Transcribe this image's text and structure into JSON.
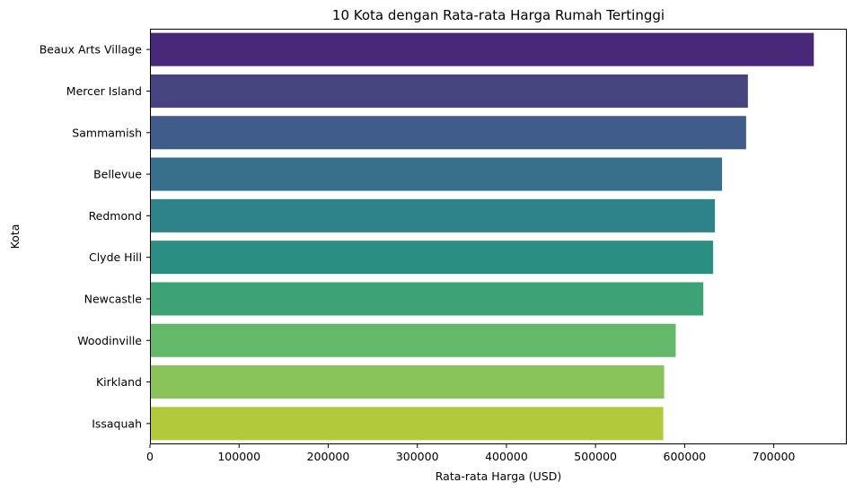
{
  "chart_data": {
    "type": "bar",
    "orientation": "horizontal",
    "title": "10 Kota dengan Rata-rata Harga Rumah Tertinggi",
    "xlabel": "Rata-rata Harga (USD)",
    "ylabel": "Kota",
    "categories": [
      "Beaux Arts Village",
      "Mercer Island",
      "Sammamish",
      "Bellevue",
      "Redmond",
      "Clyde Hill",
      "Newcastle",
      "Woodinville",
      "Kirkland",
      "Issaquah"
    ],
    "values": [
      745000,
      671000,
      669000,
      642000,
      634000,
      632000,
      621000,
      590000,
      577000,
      576000
    ],
    "colors": [
      "#482878",
      "#46447f",
      "#3f5c8a",
      "#376f8c",
      "#2e838b",
      "#2a8e82",
      "#3da376",
      "#63b86a",
      "#8ac25a",
      "#b2ca3a"
    ],
    "xlim": [
      0,
      782000
    ],
    "xticks": [
      0,
      100000,
      200000,
      300000,
      400000,
      500000,
      600000,
      700000
    ],
    "grid": false
  }
}
